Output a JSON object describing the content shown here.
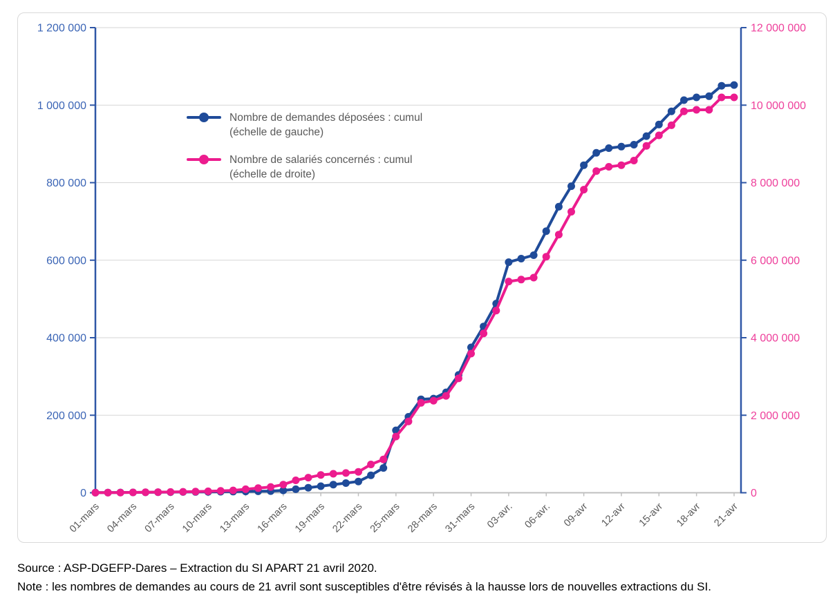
{
  "footer": {
    "source": "Source : ASP-DGEFP-Dares – Extraction du SI APART 21 avril 2020.",
    "note": "Note : les nombres de demandes au cours de 21 avril sont susceptibles d'être révisés à la hausse lors de nouvelles extractions du SI."
  },
  "colors": {
    "blue": "#1f4b99",
    "pink": "#ec1c8e",
    "left_axis_label": "#3a64b5",
    "right_axis_label": "#ee3f9b",
    "grid": "#d6d6d6",
    "spine": "#2e56a6",
    "x_axis_line": "#bfbfbf",
    "x_label": "#595959",
    "legend_text": "#595959"
  },
  "legend": {
    "items": [
      {
        "label": "Nombre de demandes déposées : cumul",
        "scale": "(échelle de gauche)"
      },
      {
        "label": "Nombre de salariés concernés : cumul",
        "scale": "(échelle de droite)"
      }
    ]
  },
  "chart_data": {
    "type": "line",
    "title": "",
    "xlabel": "",
    "ylabel_left": "",
    "ylabel_right": "",
    "grid": true,
    "legend_position": "inside-top-left",
    "x": [
      "01-mars",
      "02-mars",
      "03-mars",
      "04-mars",
      "05-mars",
      "06-mars",
      "07-mars",
      "08-mars",
      "09-mars",
      "10-mars",
      "11-mars",
      "12-mars",
      "13-mars",
      "14-mars",
      "15-mars",
      "16-mars",
      "17-mars",
      "18-mars",
      "19-mars",
      "20-mars",
      "21-mars",
      "22-mars",
      "23-mars",
      "24-mars",
      "25-mars",
      "26-mars",
      "27-mars",
      "28-mars",
      "29-mars",
      "30-mars",
      "31-mars",
      "01-avr",
      "02-avr",
      "03-avr",
      "04-avr",
      "05-avr",
      "06-avr",
      "07-avr",
      "08-avr",
      "09-avr",
      "10-avr",
      "11-avr",
      "12-avr",
      "13-avr",
      "14-avr",
      "15-avr",
      "16-avr",
      "17-avr",
      "18-avr",
      "19-avr",
      "20-avr",
      "21-avr"
    ],
    "x_tick_labels": [
      "01-mars",
      "04-mars",
      "07-mars",
      "10-mars",
      "13-mars",
      "16-mars",
      "19-mars",
      "22-mars",
      "25-mars",
      "28-mars",
      "31-mars",
      "03-avr.",
      "06-avr.",
      "09-avr",
      "12-avr",
      "15-avr",
      "18-avr",
      "21-avr"
    ],
    "left_axis": {
      "min": 0,
      "max": 1200000,
      "tick_step": 200000,
      "tick_labels": [
        "0",
        "200 000",
        "400 000",
        "600 000",
        "800 000",
        "1 000 000",
        "1 200 000"
      ]
    },
    "right_axis": {
      "min": 0,
      "max": 12000000,
      "tick_step": 2000000,
      "tick_labels": [
        "0",
        "2 000 000",
        "4 000 000",
        "6 000 000",
        "8 000 000",
        "10 000 000",
        "12 000 000"
      ]
    },
    "series": [
      {
        "name": "Nombre de demandes déposées : cumul (échelle de gauche)",
        "axis": "left",
        "color_key": "blue",
        "values": [
          300,
          500,
          700,
          900,
          1100,
          1400,
          1600,
          1900,
          2100,
          2400,
          2700,
          3000,
          3400,
          3800,
          4300,
          6000,
          9000,
          13000,
          17000,
          21000,
          25000,
          29000,
          45000,
          64000,
          161000,
          196000,
          241000,
          243000,
          259000,
          304000,
          375000,
          429000,
          488000,
          595000,
          604000,
          613000,
          675000,
          738000,
          791000,
          845000,
          877000,
          889000,
          893000,
          898000,
          920000,
          950000,
          984000,
          1013000,
          1020000,
          1023000,
          1050000,
          1052000
        ]
      },
      {
        "name": "Nombre de salariés concernés : cumul (échelle de droite)",
        "axis": "right",
        "color_key": "pink",
        "values": [
          2000,
          4000,
          6000,
          9000,
          12000,
          16000,
          20000,
          25000,
          30000,
          38000,
          48000,
          60000,
          90000,
          120000,
          150000,
          210000,
          320000,
          390000,
          460000,
          490000,
          510000,
          540000,
          730000,
          860000,
          1450000,
          1840000,
          2320000,
          2375000,
          2500000,
          2950000,
          3590000,
          4110000,
          4700000,
          5450000,
          5500000,
          5550000,
          6090000,
          6660000,
          7250000,
          7820000,
          8300000,
          8410000,
          8450000,
          8570000,
          8950000,
          9220000,
          9480000,
          9840000,
          9880000,
          9880000,
          10200000,
          10200000
        ]
      }
    ]
  }
}
